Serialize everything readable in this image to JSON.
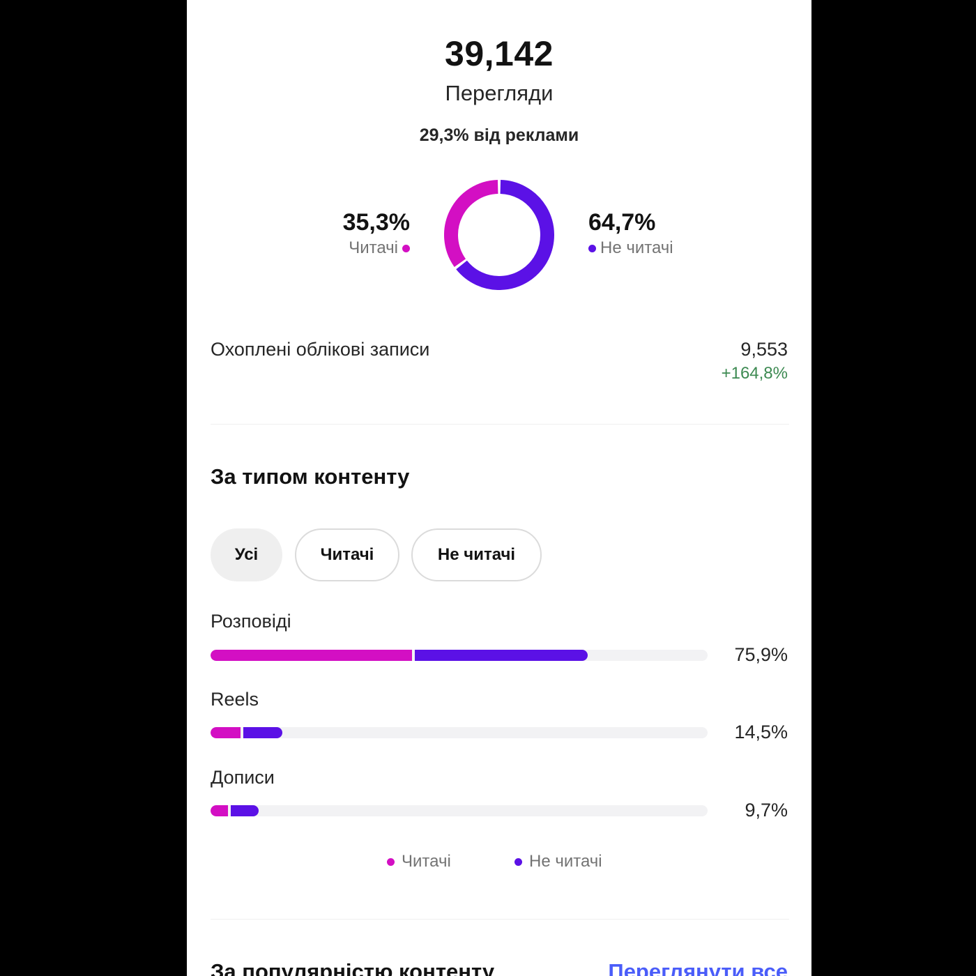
{
  "summary": {
    "views_count": "39,142",
    "views_label": "Перегляди",
    "ads_share": "29,3% від реклами"
  },
  "colors": {
    "followers": "#d30fc3",
    "non_followers": "#5b11e6",
    "positive": "#3d8a52",
    "link": "#4a5df9"
  },
  "donut": {
    "followers": {
      "percent_label": "35,3%",
      "label": "Читачі",
      "value": 35.3
    },
    "non_followers": {
      "percent_label": "64,7%",
      "label": "Не читачі",
      "value": 64.7
    }
  },
  "reached": {
    "label": "Охоплені облікові записи",
    "value": "9,553",
    "change": "+164,8%"
  },
  "content_type": {
    "title": "За типом контенту",
    "filters": [
      "Усі",
      "Читачі",
      "Не читачі"
    ],
    "selected_filter": "Усі",
    "rows": [
      {
        "label": "Розповіді",
        "percent_label": "75,9%",
        "total": 75.9,
        "followers": 40.6,
        "non_followers": 35.3
      },
      {
        "label": "Reels",
        "percent_label": "14,5%",
        "total": 14.5,
        "followers": 6.1,
        "non_followers": 8.4
      },
      {
        "label": "Дописи",
        "percent_label": "9,7%",
        "total": 9.7,
        "followers": 3.5,
        "non_followers": 6.2
      }
    ],
    "legend": {
      "followers": "Читачі",
      "non_followers": "Не читачі"
    }
  },
  "popularity": {
    "title": "За популярністю контенту",
    "view_all": "Переглянути все"
  }
}
